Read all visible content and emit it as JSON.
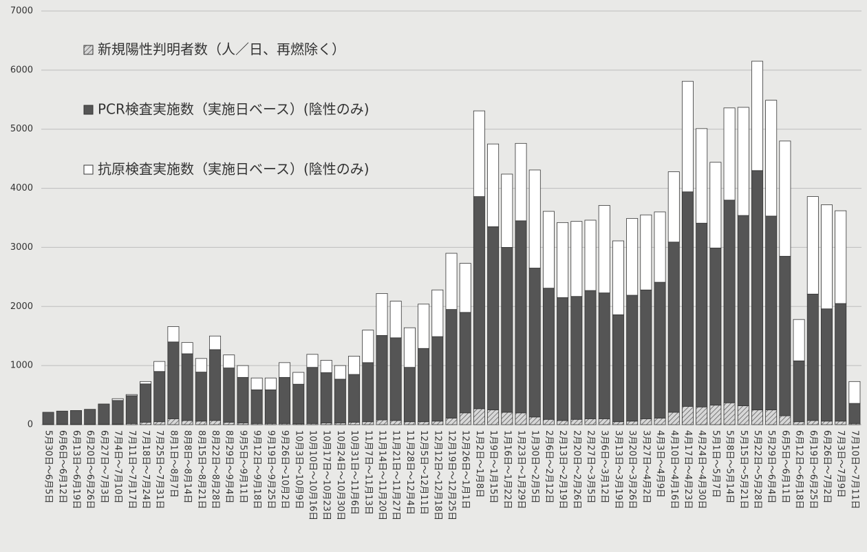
{
  "chart_data": {
    "type": "stacked_bar",
    "categories": [
      "5月30日～6月5日",
      "6月6日～6月12日",
      "6月13日～6月19日",
      "6月20日～6月26日",
      "6月27日～7月3日",
      "7月4日～7月10日",
      "7月11日～7月17日",
      "7月18日～7月24日",
      "7月25日～7月31日",
      "8月1日～8月7日",
      "8月8日～8月14日",
      "8月15日～8月21日",
      "8月22日～8月28日",
      "8月29日～9月4日",
      "9月5日～9月11日",
      "9月12日～9月18日",
      "9月19日～9月25日",
      "9月26日～10月2日",
      "10月3日～10月9日",
      "10月10日～10月16日",
      "10月17日～10月23日",
      "10月24日～10月30日",
      "10月31日～11月6日",
      "11月7日～11月13日",
      "11月14日～11月20日",
      "11月21日～11月27日",
      "11月28日～12月4日",
      "12月5日～12月11日",
      "12月12日～12月18日",
      "12月19日～12月25日",
      "12月26日～1月1日",
      "1月2日～1月8日",
      "1月9日～1月15日",
      "1月16日～1月22日",
      "1月23日～1月29日",
      "1月30日～2月5日",
      "2月6日～2月12日",
      "2月13日～2月19日",
      "2月20日～2月26日",
      "2月27日～3月5日",
      "3月6日～3月12日",
      "3月13日～3月19日",
      "3月20日～3月26日",
      "3月27日～4月2日",
      "4月3日～4月9日",
      "4月10日～4月16日",
      "4月17日～4月23日",
      "4月24日～4月30日",
      "5月1日～5月7日",
      "5月8日～5月14日",
      "5月15日～5月21日",
      "5月22日～5月28日",
      "5月29日～6月4日",
      "6月5日～6月11日",
      "6月12日～6月18日",
      "6月19日～6月25日",
      "6月26日～7月2日",
      "7月3日～7月9日",
      "7月10日～7月11日"
    ],
    "series": [
      {
        "name": "新規陽性判明者数（人／日、再燃除く）",
        "color": "#8a8a8a",
        "pattern": "hatch",
        "values": [
          5,
          5,
          5,
          5,
          5,
          10,
          20,
          40,
          50,
          100,
          70,
          60,
          70,
          40,
          30,
          20,
          20,
          20,
          15,
          20,
          30,
          30,
          40,
          50,
          80,
          70,
          50,
          50,
          60,
          110,
          200,
          270,
          250,
          210,
          200,
          130,
          90,
          70,
          90,
          100,
          100,
          50,
          60,
          100,
          110,
          210,
          310,
          300,
          330,
          370,
          320,
          250,
          250,
          150,
          50,
          70,
          60,
          60,
          20
        ]
      },
      {
        "name": "PCR検査実施数（実施日ベース）(陰性のみ)",
        "color": "#555555",
        "values": [
          205,
          225,
          235,
          255,
          345,
          400,
          470,
          650,
          850,
          1300,
          1130,
          830,
          1200,
          920,
          770,
          570,
          570,
          780,
          670,
          950,
          850,
          740,
          810,
          1000,
          1430,
          1400,
          920,
          1240,
          1430,
          1840,
          1700,
          3590,
          3100,
          2790,
          3250,
          2520,
          2220,
          2080,
          2080,
          2170,
          2130,
          1810,
          2130,
          2180,
          2300,
          2880,
          3630,
          3110,
          2660,
          3430,
          3220,
          4050,
          3280,
          2700,
          1030,
          2140,
          1900,
          1990,
          340
        ]
      },
      {
        "name": "抗原検査実施数（実施日ベース）(陰性のみ)",
        "color": "#ffffff",
        "values": [
          0,
          0,
          0,
          0,
          0,
          30,
          20,
          40,
          170,
          260,
          190,
          230,
          230,
          220,
          200,
          200,
          200,
          250,
          200,
          220,
          210,
          230,
          310,
          550,
          710,
          620,
          670,
          750,
          790,
          950,
          830,
          1450,
          1400,
          1240,
          1310,
          1660,
          1300,
          1270,
          1270,
          1190,
          1480,
          1250,
          1300,
          1270,
          1190,
          1190,
          1870,
          1600,
          1450,
          1560,
          1830,
          1850,
          1960,
          1950,
          700,
          1650,
          1760,
          1570,
          370
        ]
      }
    ],
    "ylim": [
      0,
      7000
    ],
    "yticks": [
      0,
      1000,
      2000,
      3000,
      4000,
      5000,
      6000,
      7000
    ],
    "grid": true
  }
}
